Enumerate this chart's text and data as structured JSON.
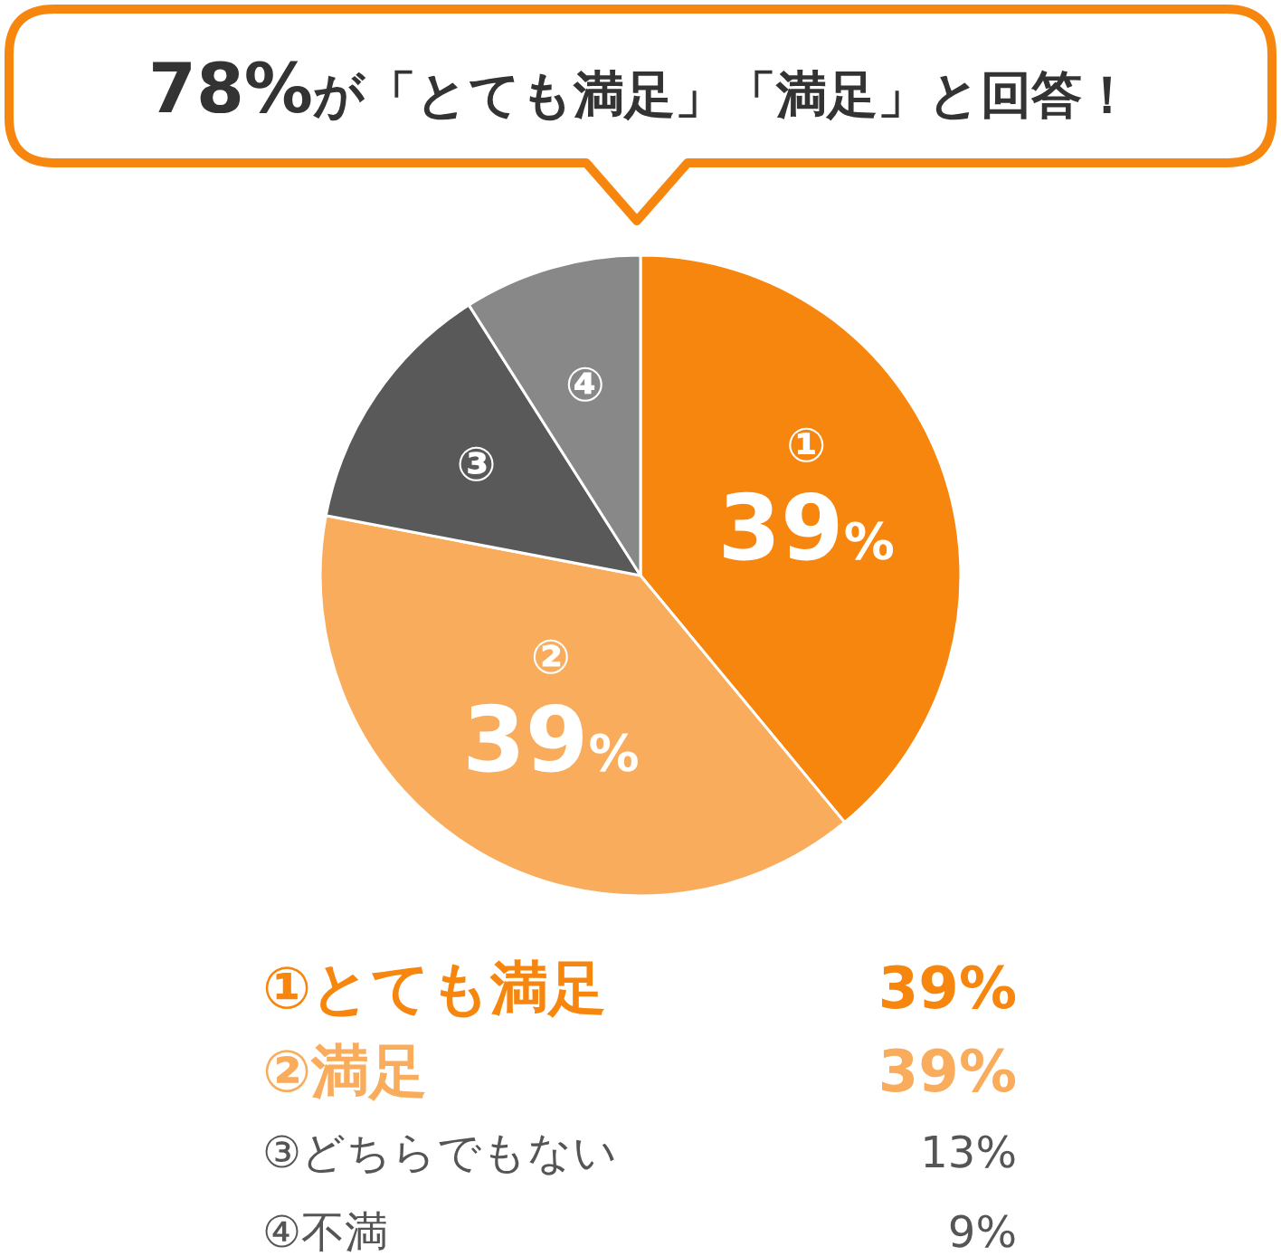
{
  "chart_data": {
    "type": "pie",
    "title": "78%が「とても満足」「満足」と回答！",
    "categories": [
      "①",
      "②",
      "③",
      "④"
    ],
    "values": [
      39,
      39,
      13,
      9
    ],
    "colors": [
      "#f7860f",
      "#f9ac5c",
      "#595959",
      "#888888"
    ],
    "value_labels": [
      "39%",
      "39%",
      null,
      null
    ],
    "annotations": [
      "①とても満足",
      "39%",
      "②満足",
      "39%",
      "③どちらでもない",
      "13%",
      "④不満",
      "9%"
    ]
  }
}
